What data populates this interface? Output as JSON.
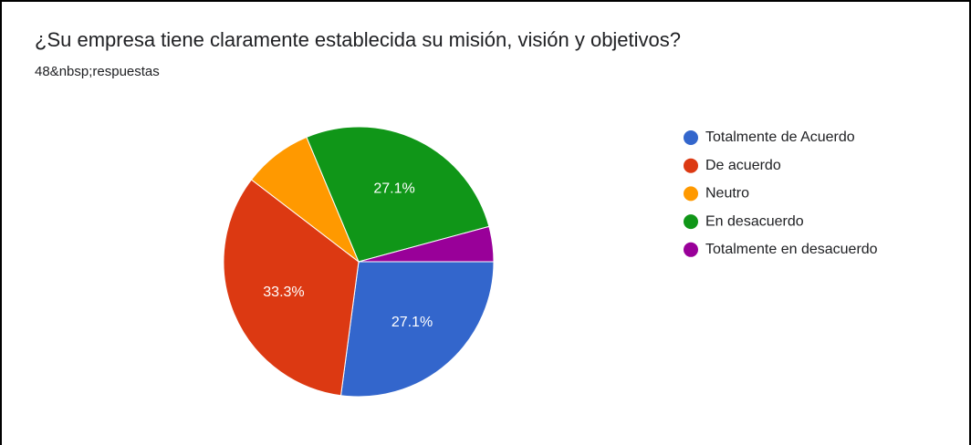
{
  "chart_data": {
    "type": "pie",
    "title": "¿Su empresa tiene claramente establecida su misión, visión y objetivos?",
    "subtitle": "48&nbsp;respuestas",
    "categories": [
      "Totalmente de Acuerdo",
      "De acuerdo",
      "Neutro",
      "En desacuerdo",
      "Totalmente en desacuerdo"
    ],
    "values": [
      27.1,
      33.3,
      8.3,
      27.1,
      4.2
    ],
    "value_labels": [
      "27.1%",
      "33.3%",
      null,
      "27.1%",
      null
    ],
    "colors": [
      "#3366cc",
      "#dc3912",
      "#ff9900",
      "#109618",
      "#990099"
    ],
    "legend": "right"
  }
}
